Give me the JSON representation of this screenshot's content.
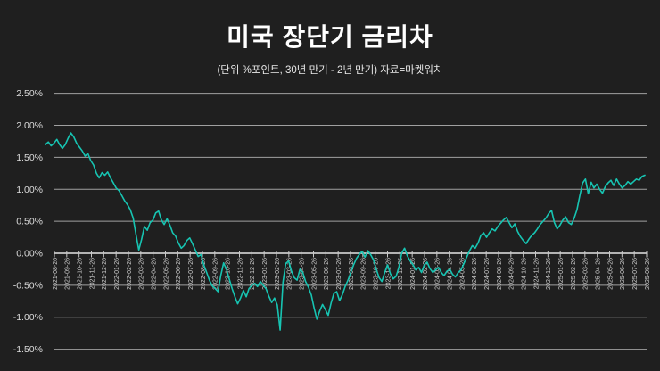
{
  "chart_data": {
    "type": "line",
    "title": "미국 장단기 금리차",
    "subtitle": "(단위 %포인트, 30년 만기 - 2년 만기) 자료=마켓워치",
    "unit": "%p (30y maturity minus 2y maturity)",
    "source": "마켓워치",
    "ylim": [
      -1.5,
      2.5
    ],
    "grid": true,
    "legend": "none",
    "y_ticks": [
      {
        "value": 2.5,
        "label": "2.50%"
      },
      {
        "value": 2.0,
        "label": "2.00%"
      },
      {
        "value": 1.5,
        "label": "1.50%"
      },
      {
        "value": 1.0,
        "label": "1.00%"
      },
      {
        "value": 0.5,
        "label": "0.50%"
      },
      {
        "value": 0.0,
        "label": "0.00%"
      },
      {
        "value": -0.5,
        "label": "-0.50%"
      },
      {
        "value": -1.0,
        "label": "-1.00%"
      },
      {
        "value": -1.5,
        "label": "-1.50%"
      }
    ],
    "x_labels": [
      "2021-08-26",
      "2021-09-26",
      "2021-10-26",
      "2021-11-26",
      "2021-12-26",
      "2022-01-26",
      "2022-02-26",
      "2022-03-26",
      "2022-04-26",
      "2022-05-26",
      "2022-06-26",
      "2022-07-26",
      "2022-08-26",
      "2022-09-26",
      "2022-10-26",
      "2022-11-26",
      "2022-12-26",
      "2023-01-26",
      "2023-02-26",
      "2023-03-26",
      "2023-04-26",
      "2023-05-26",
      "2023-06-26",
      "2023-07-26",
      "2023-08-26",
      "2023-09-26",
      "2023-10-26",
      "2023-11-26",
      "2023-12-26",
      "2024-01-26",
      "2024-02-26",
      "2024-03-26",
      "2024-04-26",
      "2024-05-26",
      "2024-06-26",
      "2024-07-26",
      "2024-08-26",
      "2024-09-26",
      "2024-10-26",
      "2024-11-26",
      "2024-12-26",
      "2025-01-26",
      "2025-02-26",
      "2025-03-26",
      "2025-04-26",
      "2025-05-26",
      "2025-06-26",
      "2025-07-26",
      "2025-08-26"
    ],
    "series": [
      {
        "name": "30년-2년 금리차",
        "frequency": "weekly",
        "start": "2021-08-05",
        "end": "2025-08-26",
        "values": [
          1.7,
          1.74,
          1.68,
          1.72,
          1.78,
          1.7,
          1.64,
          1.7,
          1.8,
          1.88,
          1.82,
          1.72,
          1.66,
          1.6,
          1.52,
          1.56,
          1.45,
          1.38,
          1.25,
          1.18,
          1.26,
          1.22,
          1.27,
          1.18,
          1.1,
          1.02,
          0.98,
          0.9,
          0.82,
          0.76,
          0.68,
          0.55,
          0.3,
          0.05,
          0.22,
          0.42,
          0.36,
          0.48,
          0.52,
          0.63,
          0.66,
          0.52,
          0.45,
          0.54,
          0.44,
          0.32,
          0.27,
          0.16,
          0.08,
          0.12,
          0.2,
          0.24,
          0.15,
          0.05,
          -0.05,
          -0.02,
          -0.18,
          -0.3,
          -0.42,
          -0.51,
          -0.55,
          -0.6,
          -0.35,
          -0.15,
          -0.25,
          -0.4,
          -0.55,
          -0.68,
          -0.79,
          -0.7,
          -0.58,
          -0.68,
          -0.55,
          -0.5,
          -0.47,
          -0.52,
          -0.44,
          -0.5,
          -0.55,
          -0.67,
          -0.77,
          -0.7,
          -0.81,
          -1.2,
          -0.45,
          -0.16,
          -0.12,
          -0.28,
          -0.38,
          -0.42,
          -0.25,
          -0.3,
          -0.44,
          -0.53,
          -0.65,
          -0.85,
          -1.03,
          -0.9,
          -0.8,
          -0.88,
          -0.97,
          -0.78,
          -0.63,
          -0.6,
          -0.74,
          -0.65,
          -0.52,
          -0.42,
          -0.3,
          -0.18,
          -0.08,
          -0.02,
          0.03,
          -0.06,
          0.04,
          -0.02,
          -0.1,
          -0.25,
          -0.38,
          -0.44,
          -0.3,
          -0.18,
          -0.32,
          -0.4,
          -0.36,
          -0.22,
          0.0,
          0.08,
          -0.04,
          -0.12,
          -0.18,
          -0.26,
          -0.22,
          -0.3,
          -0.18,
          -0.14,
          -0.24,
          -0.3,
          -0.26,
          -0.22,
          -0.3,
          -0.35,
          -0.28,
          -0.25,
          -0.33,
          -0.37,
          -0.3,
          -0.26,
          -0.16,
          -0.06,
          0.04,
          0.12,
          0.08,
          0.16,
          0.28,
          0.32,
          0.25,
          0.32,
          0.38,
          0.35,
          0.42,
          0.47,
          0.52,
          0.56,
          0.48,
          0.4,
          0.46,
          0.34,
          0.26,
          0.2,
          0.15,
          0.22,
          0.28,
          0.32,
          0.38,
          0.45,
          0.5,
          0.55,
          0.62,
          0.67,
          0.48,
          0.38,
          0.44,
          0.52,
          0.57,
          0.48,
          0.45,
          0.55,
          0.68,
          0.9,
          1.1,
          1.16,
          0.93,
          1.11,
          1.02,
          1.08,
          1.0,
          0.94,
          1.04,
          1.1,
          1.14,
          1.06,
          1.16,
          1.08,
          1.02,
          1.06,
          1.12,
          1.08,
          1.12,
          1.16,
          1.14,
          1.2,
          1.22
        ]
      }
    ],
    "colors": {
      "background": "#1f1f1f",
      "line": "#17c4b2",
      "grid": "#a0a0a0",
      "axis": "#c9c9c9",
      "title_text": "#ffffff",
      "label_text": "#cfcfcf"
    }
  }
}
